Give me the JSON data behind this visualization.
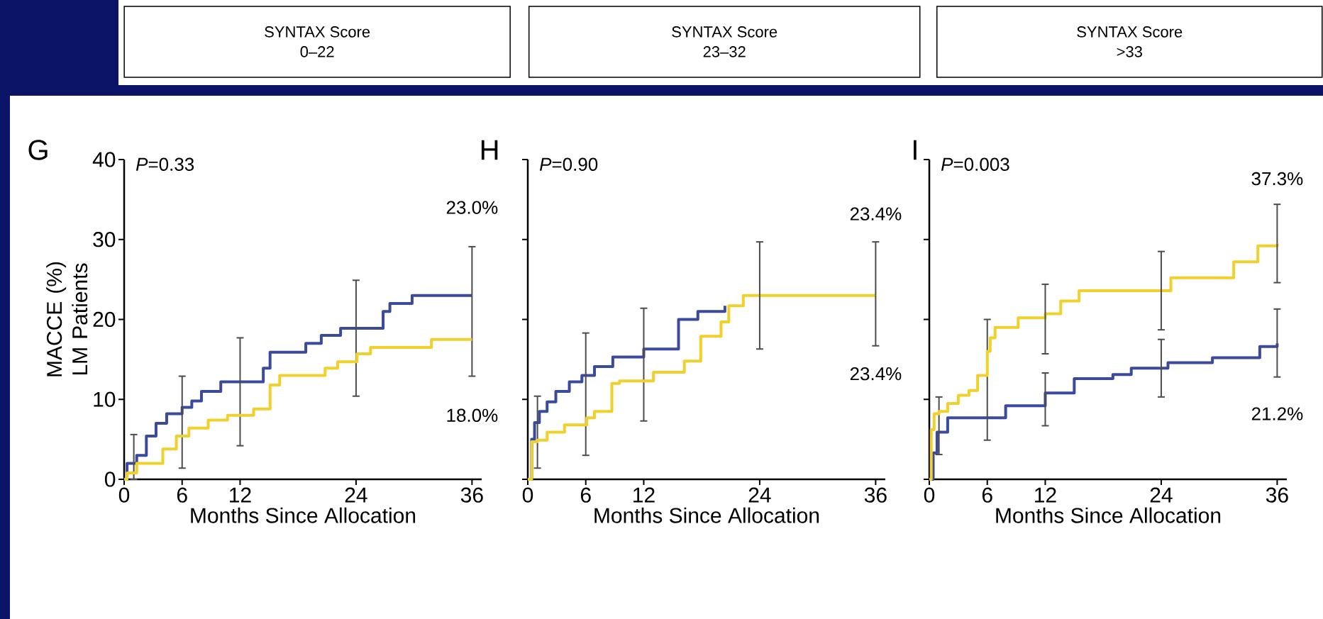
{
  "chart_data": [
    {
      "type": "step",
      "title": "SYNTAX Score",
      "subtitle": "0–22",
      "xlabel": "Months Since Allocation",
      "ylabel": "MACCE (%) LM Patients",
      "annotations": [
        "G",
        "*P*=0.33",
        "23.0%",
        "18.0%"
      ],
      "xlim": [
        0,
        37
      ],
      "ylim": [
        0,
        40
      ],
      "xticks": [
        0,
        6,
        12,
        24,
        36
      ],
      "yticks": [
        0,
        10,
        20,
        30,
        40
      ],
      "series": [
        {
          "color": "#3b4a9c",
          "x": [
            0,
            0.3,
            1,
            1.3,
            2.3,
            3.3,
            4.4,
            6,
            7,
            8,
            10,
            12,
            14.4,
            15.1,
            18.8,
            20.4,
            22.4,
            24,
            26.8,
            27.5,
            29.8,
            36
          ],
          "values": [
            0,
            2,
            2,
            3,
            5.4,
            7,
            8.2,
            9,
            9.8,
            11,
            12.2,
            12.2,
            13.9,
            15.9,
            17,
            18,
            18.9,
            18.9,
            21,
            22,
            23,
            23
          ],
          "errors": [
            null,
            null,
            [
              0,
              5.6
            ],
            null,
            null,
            null,
            null,
            [
              1.4,
              12.9
            ],
            null,
            null,
            null,
            [
              4.2,
              17.7
            ],
            null,
            null,
            null,
            null,
            null,
            [
              10.4,
              24.9
            ],
            null,
            null,
            null,
            [
              12.9,
              29.1
            ]
          ]
        },
        {
          "color": "#f2d02c",
          "x": [
            0,
            0.3,
            1.3,
            4,
            5.4,
            6,
            6.7,
            8.7,
            10.7,
            12,
            13.4,
            15.1,
            16.1,
            20.8,
            22.1,
            24,
            24.1,
            25.5,
            31.8,
            36
          ],
          "values": [
            0,
            0.8,
            2,
            3.8,
            5.4,
            5.4,
            6.4,
            7.4,
            8,
            8,
            8.8,
            11.8,
            13,
            13.9,
            14.7,
            14.7,
            15.7,
            16.5,
            17.5,
            17.5
          ]
        }
      ]
    },
    {
      "type": "step",
      "title": "SYNTAX Score",
      "subtitle": "23–32",
      "xlabel": "Months Since Allocation",
      "annotations": [
        "H",
        "*P*=0.90",
        "23.4%",
        "23.4%"
      ],
      "xlim": [
        0,
        37
      ],
      "ylim": [
        0,
        40
      ],
      "xticks": [
        0,
        6,
        12,
        24,
        36
      ],
      "yticks": [
        0,
        10,
        20,
        30,
        40
      ],
      "tick_labels": "x",
      "series": [
        {
          "color": "#3b4a9c",
          "x": [
            0,
            0.4,
            0.7,
            1,
            1.2,
            2,
            2.9,
            4.3,
            5.6,
            6,
            6.9,
            8.8,
            12,
            15.6,
            17.6,
            20.4
          ],
          "values": [
            0,
            5,
            7.1,
            7.1,
            8.5,
            9.7,
            11,
            12.2,
            13,
            13,
            14.1,
            15.3,
            16.3,
            20,
            21,
            21.7
          ],
          "errors": [
            null,
            null,
            null,
            [
              1.4,
              10.4
            ],
            null,
            null,
            null,
            null,
            null,
            [
              3,
              18.3
            ],
            null,
            null,
            [
              7.3,
              21.4
            ],
            null,
            null,
            null
          ]
        },
        {
          "color": "#f2d02c",
          "x": [
            0,
            0.4,
            1,
            2,
            3.8,
            6,
            6.1,
            6.9,
            8.7,
            9.5,
            12,
            13,
            16.2,
            17.9,
            20,
            20.8,
            22.3,
            24,
            36
          ],
          "values": [
            0,
            4.7,
            4.9,
            5.9,
            6.8,
            6.8,
            7.7,
            8.5,
            12,
            12.3,
            12.3,
            13.4,
            14.8,
            17.9,
            19.7,
            21.7,
            23,
            23,
            23
          ],
          "errors": [
            null,
            null,
            null,
            null,
            null,
            null,
            null,
            null,
            null,
            null,
            null,
            null,
            null,
            null,
            null,
            null,
            null,
            [
              16.3,
              29.7
            ],
            [
              16.7,
              29.7
            ]
          ]
        }
      ]
    },
    {
      "type": "step",
      "title": "SYNTAX Score",
      "subtitle": ">33",
      "xlabel": "Months Since Allocation",
      "annotations": [
        "I",
        "*P*=0.003",
        "37.3%",
        "21.2%"
      ],
      "xlim": [
        0,
        37
      ],
      "ylim": [
        0,
        40
      ],
      "xticks": [
        0,
        6,
        12,
        24,
        36
      ],
      "yticks": [
        0,
        10,
        20,
        30,
        40
      ],
      "tick_labels": "x",
      "series": [
        {
          "color": "#3b4a9c",
          "x": [
            0,
            0.4,
            0.8,
            1,
            1.9,
            6,
            7.9,
            12,
            15,
            19,
            20.9,
            24,
            24.7,
            29.3,
            34.2,
            36
          ],
          "values": [
            0,
            3.3,
            5.9,
            5.9,
            7.7,
            7.7,
            9.2,
            10.8,
            12.6,
            13.1,
            13.9,
            13.9,
            14.6,
            15.2,
            16.6,
            17
          ],
          "errors": [
            null,
            null,
            null,
            [
              3.1,
              10.3
            ],
            null,
            [
              4.9,
              20
            ],
            null,
            [
              6.7,
              13.3
            ],
            null,
            null,
            null,
            [
              10.3,
              17.5
            ],
            null,
            null,
            null,
            [
              12.8,
              21.3
            ]
          ]
        },
        {
          "color": "#f2d02c",
          "x": [
            0,
            0.2,
            0.5,
            1,
            1.9,
            3,
            4.1,
            5,
            6,
            6.3,
            6.8,
            9.2,
            12,
            13.6,
            15.5,
            24,
            25,
            31.5,
            34,
            36
          ],
          "values": [
            0,
            6.2,
            8.2,
            8.5,
            9.5,
            10.5,
            11.1,
            13,
            16,
            17.7,
            19,
            20.2,
            20.7,
            22.3,
            23.6,
            23.6,
            25.2,
            27.2,
            29.2,
            29.5
          ],
          "errors": [
            null,
            null,
            null,
            null,
            null,
            null,
            null,
            null,
            null,
            null,
            null,
            null,
            [
              15.7,
              24.4
            ],
            null,
            null,
            [
              18.7,
              28.5
            ],
            null,
            null,
            null,
            [
              24.6,
              34.4
            ]
          ]
        }
      ]
    }
  ]
}
